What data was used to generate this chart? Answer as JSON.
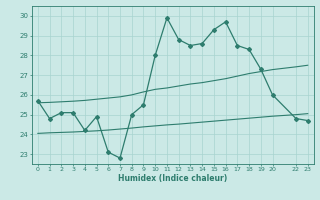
{
  "x_main": [
    0,
    1,
    2,
    3,
    4,
    5,
    6,
    7,
    8,
    9,
    10,
    11,
    12,
    13,
    14,
    15,
    16,
    17,
    18,
    19,
    20,
    22,
    23
  ],
  "y_main": [
    25.7,
    24.8,
    25.1,
    25.1,
    24.2,
    24.9,
    23.1,
    22.8,
    25.0,
    25.5,
    28.0,
    29.9,
    28.8,
    28.5,
    28.6,
    29.3,
    29.7,
    28.5,
    28.3,
    27.3,
    26.0,
    24.8,
    24.7
  ],
  "x_smooth_upper": [
    0,
    1,
    2,
    3,
    4,
    5,
    6,
    7,
    8,
    9,
    10,
    11,
    12,
    13,
    14,
    15,
    16,
    17,
    18,
    19,
    20,
    22,
    23
  ],
  "y_smooth_upper": [
    25.6,
    25.62,
    25.65,
    25.68,
    25.72,
    25.78,
    25.84,
    25.9,
    26.0,
    26.15,
    26.28,
    26.35,
    26.45,
    26.55,
    26.62,
    26.72,
    26.82,
    26.95,
    27.08,
    27.18,
    27.28,
    27.42,
    27.5
  ],
  "x_smooth_lower": [
    0,
    1,
    2,
    3,
    4,
    5,
    6,
    7,
    8,
    9,
    10,
    11,
    12,
    13,
    14,
    15,
    16,
    17,
    18,
    19,
    20,
    22,
    23
  ],
  "y_smooth_lower": [
    24.05,
    24.08,
    24.1,
    24.12,
    24.15,
    24.18,
    24.22,
    24.27,
    24.32,
    24.38,
    24.43,
    24.48,
    24.52,
    24.57,
    24.62,
    24.67,
    24.72,
    24.77,
    24.82,
    24.87,
    24.92,
    25.0,
    25.05
  ],
  "color": "#2E7D6E",
  "bg_color": "#CBE9E6",
  "grid_color": "#A8D4D0",
  "xlabel": "Humidex (Indice chaleur)",
  "ylim": [
    22.5,
    30.5
  ],
  "xlim": [
    -0.5,
    23.5
  ],
  "yticks": [
    23,
    24,
    25,
    26,
    27,
    28,
    29,
    30
  ],
  "xticks": [
    0,
    1,
    2,
    3,
    4,
    5,
    6,
    7,
    8,
    9,
    10,
    11,
    12,
    13,
    14,
    15,
    16,
    17,
    18,
    19,
    20,
    22,
    23
  ],
  "xtick_labels": [
    "0",
    "1",
    "2",
    "3",
    "4",
    "5",
    "6",
    "7",
    "8",
    "9",
    "10",
    "11",
    "12",
    "13",
    "14",
    "15",
    "16",
    "17",
    "18",
    "19",
    "20",
    "22",
    "23"
  ]
}
